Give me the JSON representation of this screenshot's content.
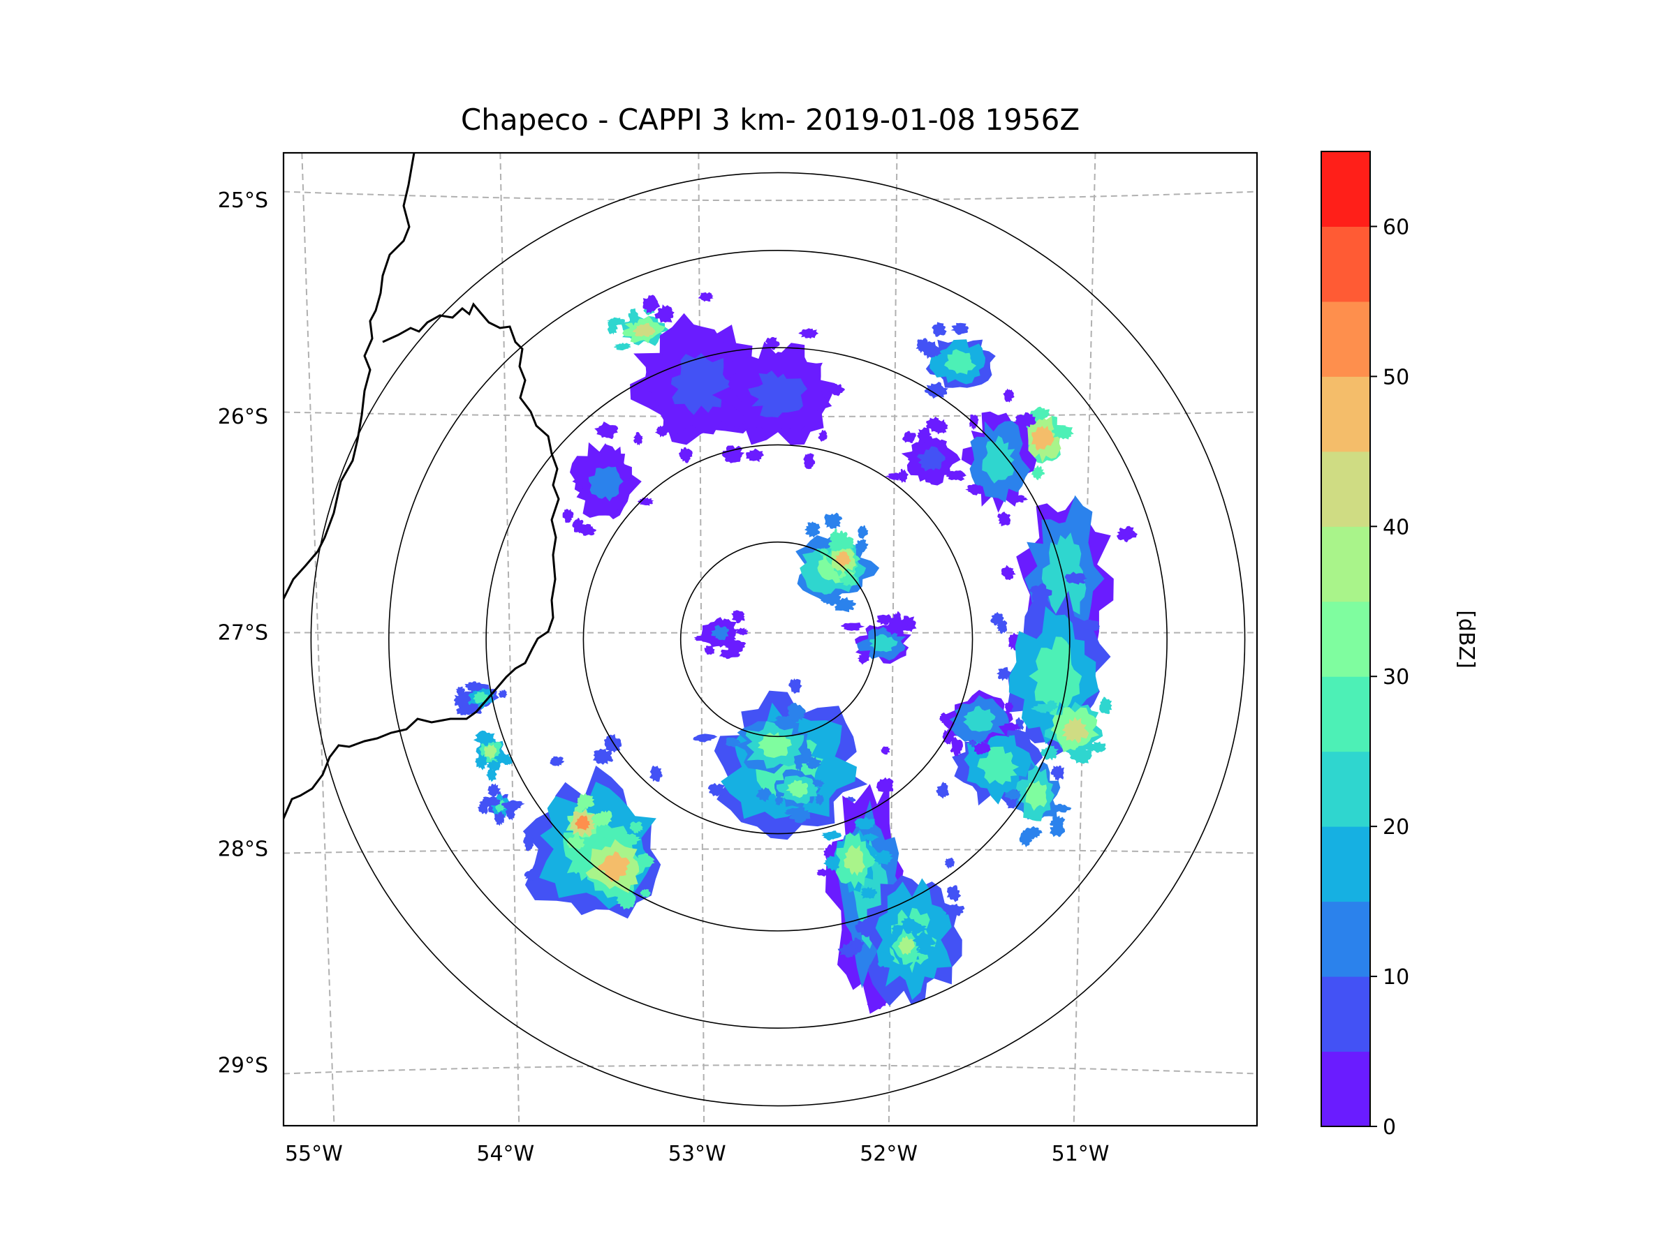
{
  "chart_data": {
    "type": "radar-map",
    "title": "Chapeco - CAPPI 3 km- 2019-01-08 1956Z",
    "radar_site": {
      "lon": -52.6,
      "lat": -27.03
    },
    "extent": {
      "lon": [
        -55.18,
        -50.1
      ],
      "lat": [
        -29.28,
        -24.78
      ]
    },
    "x_ticks": [
      {
        "value": -55,
        "label": "55°W"
      },
      {
        "value": -54,
        "label": "54°W"
      },
      {
        "value": -53,
        "label": "53°W"
      },
      {
        "value": -52,
        "label": "52°W"
      },
      {
        "value": -51,
        "label": "51°W"
      }
    ],
    "y_ticks": [
      {
        "value": -25,
        "label": "25°S"
      },
      {
        "value": -26,
        "label": "26°S"
      },
      {
        "value": -27,
        "label": "27°S"
      },
      {
        "value": -28,
        "label": "28°S"
      },
      {
        "value": -29,
        "label": "29°S"
      }
    ],
    "range_rings_km": [
      50,
      100,
      150,
      200,
      240
    ],
    "colorbar": {
      "label": "[dBZ]",
      "range": [
        0,
        65
      ],
      "step": 5,
      "ticks": [
        0,
        10,
        20,
        30,
        40,
        50,
        60
      ],
      "colors": [
        "#6a1cff",
        "#4352f5",
        "#2b82ec",
        "#16b0e2",
        "#2fd6cf",
        "#4df0b6",
        "#7ffd9f",
        "#a9f48a",
        "#cfdc83",
        "#f4bd6a",
        "#fe8f4d",
        "#ff5b34",
        "#ff1f19"
      ]
    },
    "echoes": [
      {
        "lon": -52.55,
        "lat": -27.62,
        "rx": 0.32,
        "ry": 0.27,
        "dbz": 25
      },
      {
        "lon": -52.62,
        "lat": -27.52,
        "rx": 0.16,
        "ry": 0.1,
        "dbz": 30
      },
      {
        "lon": -52.5,
        "lat": -27.72,
        "rx": 0.1,
        "ry": 0.07,
        "dbz": 30
      },
      {
        "lon": -52.3,
        "lat": -26.7,
        "rx": 0.17,
        "ry": 0.13,
        "dbz": 30
      },
      {
        "lon": -52.26,
        "lat": -26.66,
        "rx": 0.07,
        "ry": 0.06,
        "dbz": 45
      },
      {
        "lon": -52.12,
        "lat": -28.2,
        "rx": 0.17,
        "ry": 0.42,
        "dbz": 20
      },
      {
        "lon": -51.9,
        "lat": -28.42,
        "rx": 0.2,
        "ry": 0.25,
        "dbz": 25
      },
      {
        "lon": -51.93,
        "lat": -28.45,
        "rx": 0.07,
        "ry": 0.08,
        "dbz": 35
      },
      {
        "lon": -53.55,
        "lat": -28.0,
        "rx": 0.3,
        "ry": 0.28,
        "dbz": 25
      },
      {
        "lon": -53.45,
        "lat": -28.08,
        "rx": 0.14,
        "ry": 0.12,
        "dbz": 45
      },
      {
        "lon": -53.62,
        "lat": -27.88,
        "rx": 0.07,
        "ry": 0.06,
        "dbz": 50
      },
      {
        "lon": -51.1,
        "lat": -26.75,
        "rx": 0.2,
        "ry": 0.35,
        "dbz": 20
      },
      {
        "lon": -51.15,
        "lat": -27.2,
        "rx": 0.22,
        "ry": 0.3,
        "dbz": 25
      },
      {
        "lon": -51.05,
        "lat": -27.45,
        "rx": 0.12,
        "ry": 0.1,
        "dbz": 40
      },
      {
        "lon": -51.22,
        "lat": -26.1,
        "rx": 0.1,
        "ry": 0.1,
        "dbz": 45
      },
      {
        "lon": -51.45,
        "lat": -26.2,
        "rx": 0.15,
        "ry": 0.18,
        "dbz": 20
      },
      {
        "lon": -51.45,
        "lat": -27.62,
        "rx": 0.18,
        "ry": 0.15,
        "dbz": 25
      },
      {
        "lon": -51.55,
        "lat": -27.4,
        "rx": 0.15,
        "ry": 0.1,
        "dbz": 20
      },
      {
        "lon": -51.25,
        "lat": -27.75,
        "rx": 0.1,
        "ry": 0.12,
        "dbz": 30
      },
      {
        "lon": -51.65,
        "lat": -25.75,
        "rx": 0.14,
        "ry": 0.1,
        "dbz": 25
      },
      {
        "lon": -53.3,
        "lat": -25.6,
        "rx": 0.1,
        "ry": 0.06,
        "dbz": 40
      },
      {
        "lon": -53.0,
        "lat": -25.85,
        "rx": 0.3,
        "ry": 0.25,
        "dbz": 5
      },
      {
        "lon": -52.6,
        "lat": -25.9,
        "rx": 0.25,
        "ry": 0.2,
        "dbz": 5
      },
      {
        "lon": -53.5,
        "lat": -26.3,
        "rx": 0.15,
        "ry": 0.15,
        "dbz": 10
      },
      {
        "lon": -54.1,
        "lat": -27.55,
        "rx": 0.06,
        "ry": 0.06,
        "dbz": 35
      },
      {
        "lon": -54.15,
        "lat": -27.3,
        "rx": 0.07,
        "ry": 0.05,
        "dbz": 25
      },
      {
        "lon": -54.05,
        "lat": -27.8,
        "rx": 0.05,
        "ry": 0.05,
        "dbz": 25
      },
      {
        "lon": -52.05,
        "lat": -27.05,
        "rx": 0.12,
        "ry": 0.07,
        "dbz": 20
      },
      {
        "lon": -52.9,
        "lat": -27.0,
        "rx": 0.08,
        "ry": 0.06,
        "dbz": 10
      },
      {
        "lon": -51.8,
        "lat": -26.2,
        "rx": 0.12,
        "ry": 0.1,
        "dbz": 5
      },
      {
        "lon": -52.2,
        "lat": -28.05,
        "rx": 0.1,
        "ry": 0.12,
        "dbz": 35
      }
    ]
  }
}
